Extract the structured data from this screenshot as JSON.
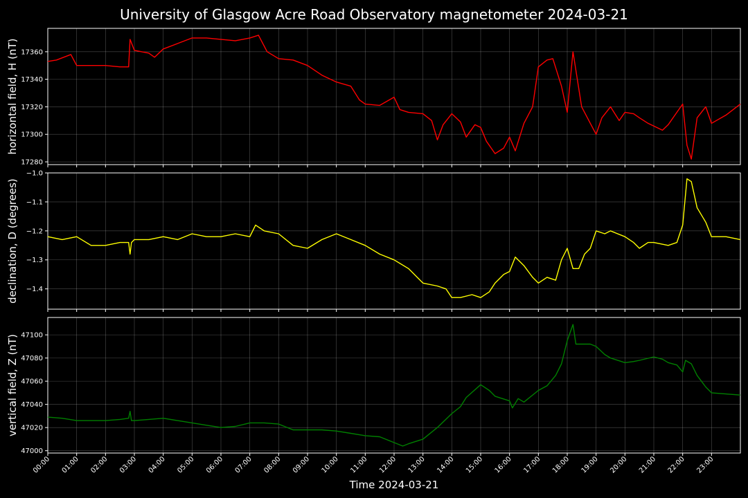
{
  "chart_data": [
    {
      "type": "line",
      "title": "University of Glasgow Acre Road Observatory magnetometer 2024-03-21",
      "xlabel": "",
      "ylabel": "horizontal field, H (nT)",
      "color": "#ff0000",
      "xlim": [
        0,
        24
      ],
      "ylim": [
        17278,
        17377
      ],
      "yticks": [
        17280,
        17300,
        17320,
        17340,
        17360
      ],
      "ytick_labels": [
        "17280",
        "17300",
        "17320",
        "17340",
        "17360"
      ],
      "grid": true,
      "series": [
        {
          "x": [
            0,
            0.3,
            0.8,
            1.0,
            1.5,
            2.0,
            2.5,
            2.8,
            2.85,
            3.0,
            3.5,
            3.7,
            4.0,
            4.5,
            5.0,
            5.5,
            6.0,
            6.5,
            7.0,
            7.3,
            7.6,
            8.0,
            8.5,
            9.0,
            9.5,
            10.0,
            10.5,
            10.8,
            11.0,
            11.5,
            12.0,
            12.2,
            12.5,
            13.0,
            13.3,
            13.5,
            13.7,
            14.0,
            14.3,
            14.5,
            14.8,
            15.0,
            15.2,
            15.5,
            15.8,
            16.0,
            16.2,
            16.5,
            16.8,
            17.0,
            17.3,
            17.5,
            17.8,
            18.0,
            18.2,
            18.5,
            18.8,
            19.0,
            19.2,
            19.5,
            19.8,
            20.0,
            20.3,
            20.5,
            20.8,
            21.0,
            21.3,
            21.5,
            21.8,
            22.0,
            22.15,
            22.3,
            22.5,
            22.8,
            23.0,
            23.5,
            24.0
          ],
          "y": [
            17353,
            17354,
            17358,
            17350,
            17350,
            17350,
            17349,
            17349,
            17369,
            17361,
            17359,
            17356,
            17362,
            17366,
            17370,
            17370,
            17369,
            17368,
            17370,
            17372,
            17360,
            17355,
            17354,
            17350,
            17343,
            17338,
            17335,
            17325,
            17322,
            17321,
            17327,
            17318,
            17316,
            17315,
            17310,
            17296,
            17307,
            17315,
            17309,
            17298,
            17307,
            17305,
            17295,
            17286,
            17290,
            17298,
            17288,
            17308,
            17320,
            17349,
            17354,
            17355,
            17335,
            17316,
            17360,
            17320,
            17308,
            17300,
            17312,
            17320,
            17310,
            17316,
            17315,
            17312,
            17308,
            17306,
            17303,
            17307,
            17316,
            17322,
            17292,
            17282,
            17312,
            17320,
            17308,
            17314,
            17322
          ]
        }
      ]
    },
    {
      "type": "line",
      "title": "",
      "xlabel": "",
      "ylabel": "declination, D (degrees)",
      "color": "#ffff00",
      "xlim": [
        0,
        24
      ],
      "ylim": [
        -1.47,
        -1.0
      ],
      "yticks": [
        -1.4,
        -1.3,
        -1.2,
        -1.1,
        -1.0
      ],
      "ytick_labels": [
        "−1.4",
        "−1.3",
        "−1.2",
        "−1.1",
        "−1.0"
      ],
      "grid": true,
      "series": [
        {
          "x": [
            0,
            0.5,
            1.0,
            1.5,
            2.0,
            2.5,
            2.8,
            2.85,
            2.9,
            3.0,
            3.5,
            4.0,
            4.5,
            5.0,
            5.5,
            6.0,
            6.5,
            7.0,
            7.2,
            7.5,
            8.0,
            8.5,
            9.0,
            9.5,
            10.0,
            10.5,
            11.0,
            11.5,
            12.0,
            12.5,
            13.0,
            13.5,
            13.8,
            14.0,
            14.3,
            14.7,
            15.0,
            15.3,
            15.5,
            15.8,
            16.0,
            16.2,
            16.5,
            16.8,
            17.0,
            17.3,
            17.6,
            17.8,
            18.0,
            18.2,
            18.4,
            18.6,
            18.8,
            19.0,
            19.3,
            19.5,
            20.0,
            20.3,
            20.5,
            20.8,
            21.0,
            21.5,
            21.8,
            22.0,
            22.15,
            22.3,
            22.5,
            22.8,
            23.0,
            23.5,
            24.0
          ],
          "y": [
            -1.22,
            -1.23,
            -1.22,
            -1.25,
            -1.25,
            -1.24,
            -1.24,
            -1.28,
            -1.24,
            -1.23,
            -1.23,
            -1.22,
            -1.23,
            -1.21,
            -1.22,
            -1.22,
            -1.21,
            -1.22,
            -1.18,
            -1.2,
            -1.21,
            -1.25,
            -1.26,
            -1.23,
            -1.21,
            -1.23,
            -1.25,
            -1.28,
            -1.3,
            -1.33,
            -1.38,
            -1.39,
            -1.4,
            -1.43,
            -1.43,
            -1.42,
            -1.43,
            -1.41,
            -1.38,
            -1.35,
            -1.34,
            -1.29,
            -1.32,
            -1.36,
            -1.38,
            -1.36,
            -1.37,
            -1.3,
            -1.26,
            -1.33,
            -1.33,
            -1.28,
            -1.26,
            -1.2,
            -1.21,
            -1.2,
            -1.22,
            -1.24,
            -1.26,
            -1.24,
            -1.24,
            -1.25,
            -1.24,
            -1.18,
            -1.02,
            -1.03,
            -1.12,
            -1.17,
            -1.22,
            -1.22,
            -1.23
          ]
        }
      ]
    },
    {
      "type": "line",
      "title": "",
      "xlabel": "Time 2024-03-21",
      "ylabel": "vertical field, Z (nT)",
      "color": "#008000",
      "xlim": [
        0,
        24
      ],
      "ylim": [
        46998,
        47115
      ],
      "yticks": [
        47000,
        47020,
        47040,
        47060,
        47080,
        47100
      ],
      "ytick_labels": [
        "47000",
        "47020",
        "47040",
        "47060",
        "47080",
        "47100"
      ],
      "xticks": [
        0,
        1,
        2,
        3,
        4,
        5,
        6,
        7,
        8,
        9,
        10,
        11,
        12,
        13,
        14,
        15,
        16,
        17,
        18,
        19,
        20,
        21,
        22,
        23
      ],
      "xtick_labels": [
        "00:00",
        "01:00",
        "02:00",
        "03:00",
        "04:00",
        "05:00",
        "06:00",
        "07:00",
        "08:00",
        "09:00",
        "10:00",
        "11:00",
        "12:00",
        "13:00",
        "14:00",
        "15:00",
        "16:00",
        "17:00",
        "18:00",
        "19:00",
        "20:00",
        "21:00",
        "22:00",
        "23:00"
      ],
      "grid": true,
      "series": [
        {
          "x": [
            0,
            0.5,
            1.0,
            1.5,
            2.0,
            2.5,
            2.8,
            2.85,
            2.9,
            3.0,
            3.5,
            4.0,
            4.5,
            5.0,
            5.5,
            6.0,
            6.5,
            7.0,
            7.5,
            8.0,
            8.5,
            9.0,
            9.5,
            10.0,
            10.5,
            11.0,
            11.5,
            12.0,
            12.3,
            12.5,
            13.0,
            13.5,
            14.0,
            14.3,
            14.5,
            15.0,
            15.3,
            15.5,
            16.0,
            16.1,
            16.3,
            16.5,
            17.0,
            17.3,
            17.6,
            17.8,
            18.0,
            18.2,
            18.3,
            18.5,
            18.8,
            19.0,
            19.3,
            19.5,
            20.0,
            20.3,
            20.5,
            21.0,
            21.3,
            21.5,
            21.8,
            22.0,
            22.1,
            22.3,
            22.5,
            22.8,
            23.0,
            23.5,
            24.0
          ],
          "y": [
            47029,
            47028,
            47026,
            47026,
            47026,
            47027,
            47028,
            47034,
            47026,
            47026,
            47027,
            47028,
            47026,
            47024,
            47022,
            47020,
            47021,
            47024,
            47024,
            47023,
            47018,
            47018,
            47018,
            47017,
            47015,
            47013,
            47012,
            47007,
            47004,
            47006,
            47010,
            47020,
            47032,
            47038,
            47046,
            47057,
            47052,
            47047,
            47043,
            47037,
            47045,
            47042,
            47052,
            47056,
            47065,
            47075,
            47095,
            47109,
            47092,
            47092,
            47092,
            47090,
            47083,
            47080,
            47076,
            47077,
            47078,
            47081,
            47079,
            47076,
            47074,
            47068,
            47078,
            47075,
            47065,
            47055,
            47050,
            47049,
            47048
          ]
        }
      ]
    }
  ]
}
